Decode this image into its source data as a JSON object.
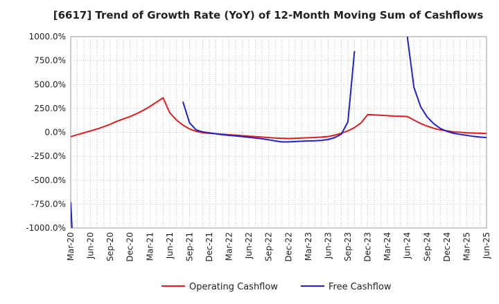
{
  "chart_data": {
    "type": "line",
    "title": "[6617]  Trend of Growth Rate (YoY) of 12-Month Moving Sum of Cashflows",
    "xlabel": "",
    "ylabel": "",
    "ylim": [
      -1000,
      1000
    ],
    "y_ticks": [
      1000,
      750,
      500,
      250,
      0,
      -250,
      -500,
      -750,
      -1000
    ],
    "y_tick_labels": [
      "1000.0%",
      "750.0%",
      "500.0%",
      "250.0%",
      "0.0%",
      "-250.0%",
      "-500.0%",
      "-750.0%",
      "-1000.0%"
    ],
    "x_ticks": [
      "Mar-20",
      "Jun-20",
      "Sep-20",
      "Dec-20",
      "Mar-21",
      "Jun-21",
      "Sep-21",
      "Dec-21",
      "Mar-22",
      "Jun-22",
      "Sep-22",
      "Dec-22",
      "Mar-23",
      "Jun-23",
      "Sep-23",
      "Dec-23",
      "Mar-24",
      "Jun-24",
      "Sep-24",
      "Dec-24",
      "Mar-25",
      "Jun-25"
    ],
    "grid": true,
    "legend_position": "bottom",
    "series": [
      {
        "name": "Operating Cashflow",
        "color": "#e31a1c",
        "points": [
          [
            0,
            -45
          ],
          [
            1,
            -25
          ],
          [
            2,
            -5
          ],
          [
            3,
            15
          ],
          [
            4,
            35
          ],
          [
            5,
            58
          ],
          [
            6,
            85
          ],
          [
            7,
            115
          ],
          [
            8,
            140
          ],
          [
            9,
            165
          ],
          [
            10,
            195
          ],
          [
            11,
            230
          ],
          [
            12,
            270
          ],
          [
            13,
            315
          ],
          [
            14,
            360
          ],
          [
            15,
            205
          ],
          [
            16,
            130
          ],
          [
            17,
            75
          ],
          [
            18,
            35
          ],
          [
            19,
            10
          ],
          [
            20,
            -5
          ],
          [
            21,
            -10
          ],
          [
            22,
            -15
          ],
          [
            23,
            -20
          ],
          [
            24,
            -25
          ],
          [
            25,
            -30
          ],
          [
            26,
            -35
          ],
          [
            27,
            -40
          ],
          [
            28,
            -45
          ],
          [
            29,
            -50
          ],
          [
            30,
            -55
          ],
          [
            31,
            -60
          ],
          [
            32,
            -62
          ],
          [
            33,
            -65
          ],
          [
            34,
            -62
          ],
          [
            35,
            -60
          ],
          [
            36,
            -57
          ],
          [
            37,
            -54
          ],
          [
            38,
            -50
          ],
          [
            39,
            -44
          ],
          [
            40,
            -30
          ],
          [
            41,
            -10
          ],
          [
            42,
            15
          ],
          [
            43,
            50
          ],
          [
            44,
            100
          ],
          [
            45,
            185
          ],
          [
            46,
            182
          ],
          [
            47,
            178
          ],
          [
            48,
            174
          ],
          [
            49,
            170
          ],
          [
            50,
            168
          ],
          [
            51,
            165
          ],
          [
            52,
            128
          ],
          [
            53,
            92
          ],
          [
            54,
            65
          ],
          [
            55,
            42
          ],
          [
            56,
            25
          ],
          [
            57,
            15
          ],
          [
            58,
            5
          ],
          [
            59,
            0
          ],
          [
            60,
            -5
          ],
          [
            61,
            -8
          ],
          [
            62,
            -10
          ],
          [
            63,
            -13
          ],
          [
            64,
            -15
          ]
        ]
      },
      {
        "name": "Free Cashflow",
        "color": "#1f1fcf",
        "segments": [
          [
            [
              0,
              -730
            ],
            [
              0.2,
              -1000
            ]
          ],
          [
            [
              17,
              320
            ],
            [
              18,
              100
            ],
            [
              19,
              25
            ],
            [
              20,
              5
            ],
            [
              21,
              -5
            ],
            [
              22,
              -15
            ],
            [
              23,
              -25
            ],
            [
              24,
              -32
            ],
            [
              25,
              -38
            ],
            [
              26,
              -45
            ],
            [
              27,
              -52
            ],
            [
              28,
              -60
            ],
            [
              29,
              -68
            ],
            [
              30,
              -78
            ],
            [
              31,
              -90
            ],
            [
              32,
              -100
            ],
            [
              33,
              -100
            ],
            [
              34,
              -97
            ],
            [
              35,
              -93
            ],
            [
              36,
              -90
            ],
            [
              37,
              -88
            ],
            [
              38,
              -85
            ],
            [
              39,
              -75
            ],
            [
              40,
              -55
            ],
            [
              41,
              -20
            ],
            [
              42,
              110
            ],
            [
              43,
              850
            ]
          ],
          [
            [
              51,
              1000
            ],
            [
              52,
              470
            ],
            [
              53,
              270
            ],
            [
              54,
              160
            ],
            [
              55,
              90
            ],
            [
              56,
              40
            ],
            [
              57,
              10
            ],
            [
              58,
              -10
            ],
            [
              59,
              -22
            ],
            [
              60,
              -32
            ],
            [
              61,
              -42
            ],
            [
              62,
              -50
            ],
            [
              63,
              -55
            ],
            [
              64,
              -60
            ]
          ]
        ]
      }
    ]
  }
}
